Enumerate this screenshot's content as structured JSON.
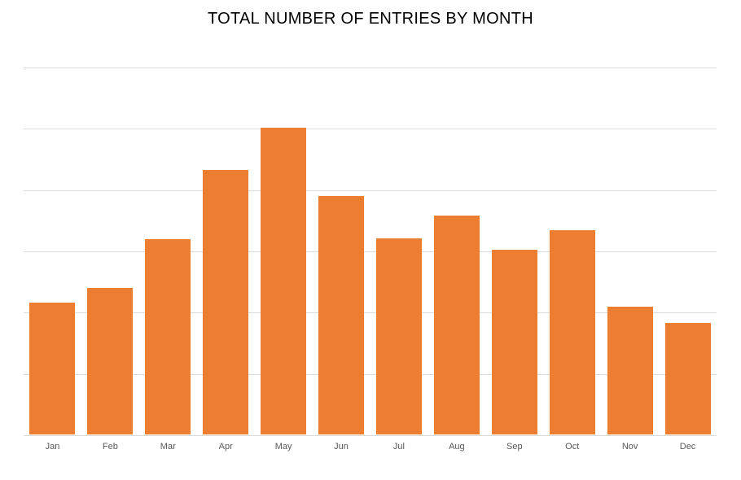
{
  "page": {
    "title": "TOTAL NUMBER OF ENTRIES BY MONTH"
  },
  "chart_data": {
    "type": "bar",
    "title": "TOTAL NUMBER OF ENTRIES BY MONTH",
    "categories": [
      "Jan",
      "Feb",
      "Mar",
      "Apr",
      "May",
      "Jun",
      "Jul",
      "Aug",
      "Sep",
      "Oct",
      "Nov",
      "Dec"
    ],
    "values": [
      2.15,
      2.39,
      3.19,
      4.32,
      5.0,
      3.89,
      3.2,
      3.57,
      3.01,
      3.33,
      2.08,
      1.82
    ],
    "xlabel": "",
    "ylabel": "",
    "ylim": [
      0,
      6
    ],
    "y_gridline_interval": 1,
    "y_tick_labels_visible": false,
    "x_tick_labels_visible": true,
    "grid": "horizontal",
    "legend": "none",
    "note": "y-axis has no visible tick labels; values are measured in gridline units (1 unit per gridline interval, 6 intervals total)",
    "colors": {
      "bar": "#ED7D31",
      "gridline": "#D9D9D9",
      "axis_line": "#D9D9D9",
      "x_tick_label": "#595959",
      "title": "#000000",
      "background": "#FFFFFF"
    }
  }
}
